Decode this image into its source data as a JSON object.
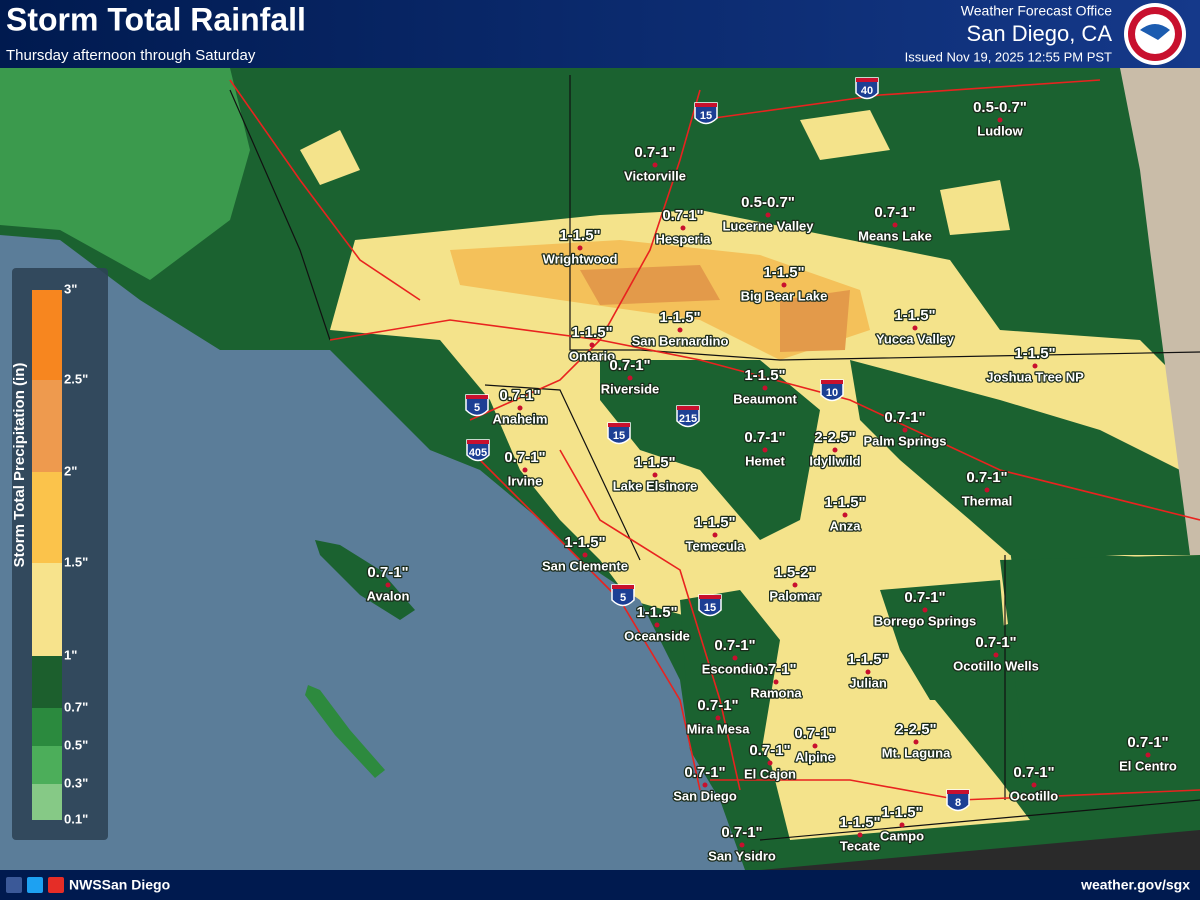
{
  "header": {
    "title": "Storm Total Rainfall",
    "subtitle": "Thursday afternoon through Saturday",
    "office": "Weather Forecast Office",
    "office_location": "San Diego, CA",
    "issued": "Issued Nov 19, 2025 12:55 PM PST"
  },
  "legend": {
    "title": "Storm Total Precipitation (in)",
    "labels": [
      "3\"",
      "2.5\"",
      "2\"",
      "1.5\"",
      "1\"",
      "0.7\"",
      "0.5\"",
      "0.3\"",
      "0.1\""
    ],
    "colors": [
      "#f7861f",
      "#ee9a4e",
      "#fbc34b",
      "#f7e38c",
      "#1c5f2d",
      "#2b8a3e",
      "#4cae5a",
      "#86c986"
    ]
  },
  "locations": [
    {
      "name": "Ludlow",
      "amount": "0.5-0.7\""
    },
    {
      "name": "Victorville",
      "amount": "0.7-1\""
    },
    {
      "name": "Hesperia",
      "amount": "0.7-1\""
    },
    {
      "name": "Lucerne Valley",
      "amount": "0.5-0.7\""
    },
    {
      "name": "Means Lake",
      "amount": "0.7-1\""
    },
    {
      "name": "Wrightwood",
      "amount": "1-1.5\""
    },
    {
      "name": "Big Bear Lake",
      "amount": "1-1.5\""
    },
    {
      "name": "Ontario",
      "amount": "1-1.5\""
    },
    {
      "name": "San Bernardino",
      "amount": "1-1.5\""
    },
    {
      "name": "Yucca Valley",
      "amount": "1-1.5\""
    },
    {
      "name": "Joshua Tree NP",
      "amount": "1-1.5\""
    },
    {
      "name": "Riverside",
      "amount": "0.7-1\""
    },
    {
      "name": "Beaumont",
      "amount": "1-1.5\""
    },
    {
      "name": "Anaheim",
      "amount": "0.7-1\""
    },
    {
      "name": "Palm Springs",
      "amount": "0.7-1\""
    },
    {
      "name": "Hemet",
      "amount": "0.7-1\""
    },
    {
      "name": "Idyllwild",
      "amount": "2-2.5\""
    },
    {
      "name": "Irvine",
      "amount": "0.7-1\""
    },
    {
      "name": "Lake Elsinore",
      "amount": "1-1.5\""
    },
    {
      "name": "Thermal",
      "amount": "0.7-1\""
    },
    {
      "name": "Anza",
      "amount": "1-1.5\""
    },
    {
      "name": "Temecula",
      "amount": "1-1.5\""
    },
    {
      "name": "San Clemente",
      "amount": "1-1.5\""
    },
    {
      "name": "Avalon",
      "amount": "0.7-1\""
    },
    {
      "name": "Palomar",
      "amount": "1.5-2\""
    },
    {
      "name": "Borrego Springs",
      "amount": "0.7-1\""
    },
    {
      "name": "Oceanside",
      "amount": "1-1.5\""
    },
    {
      "name": "Ocotillo Wells",
      "amount": "0.7-1\""
    },
    {
      "name": "Escondido",
      "amount": "0.7-1\""
    },
    {
      "name": "Ramona",
      "amount": "0.7-1\""
    },
    {
      "name": "Julian",
      "amount": "1-1.5\""
    },
    {
      "name": "Mira Mesa",
      "amount": "0.7-1\""
    },
    {
      "name": "Mt. Laguna",
      "amount": "2-2.5\""
    },
    {
      "name": "Alpine",
      "amount": "0.7-1\""
    },
    {
      "name": "El Cajon",
      "amount": "0.7-1\""
    },
    {
      "name": "El Centro",
      "amount": "0.7-1\""
    },
    {
      "name": "San Diego",
      "amount": "0.7-1\""
    },
    {
      "name": "Ocotillo",
      "amount": "0.7-1\""
    },
    {
      "name": "Campo",
      "amount": "1-1.5\""
    },
    {
      "name": "Tecate",
      "amount": "1-1.5\""
    },
    {
      "name": "San Ysidro",
      "amount": "0.7-1\""
    }
  ],
  "highways": [
    "15",
    "40",
    "5",
    "405",
    "15",
    "215",
    "10",
    "5",
    "15",
    "8"
  ],
  "footer": {
    "social": "NWSSan Diego",
    "website": "weather.gov/sgx"
  }
}
